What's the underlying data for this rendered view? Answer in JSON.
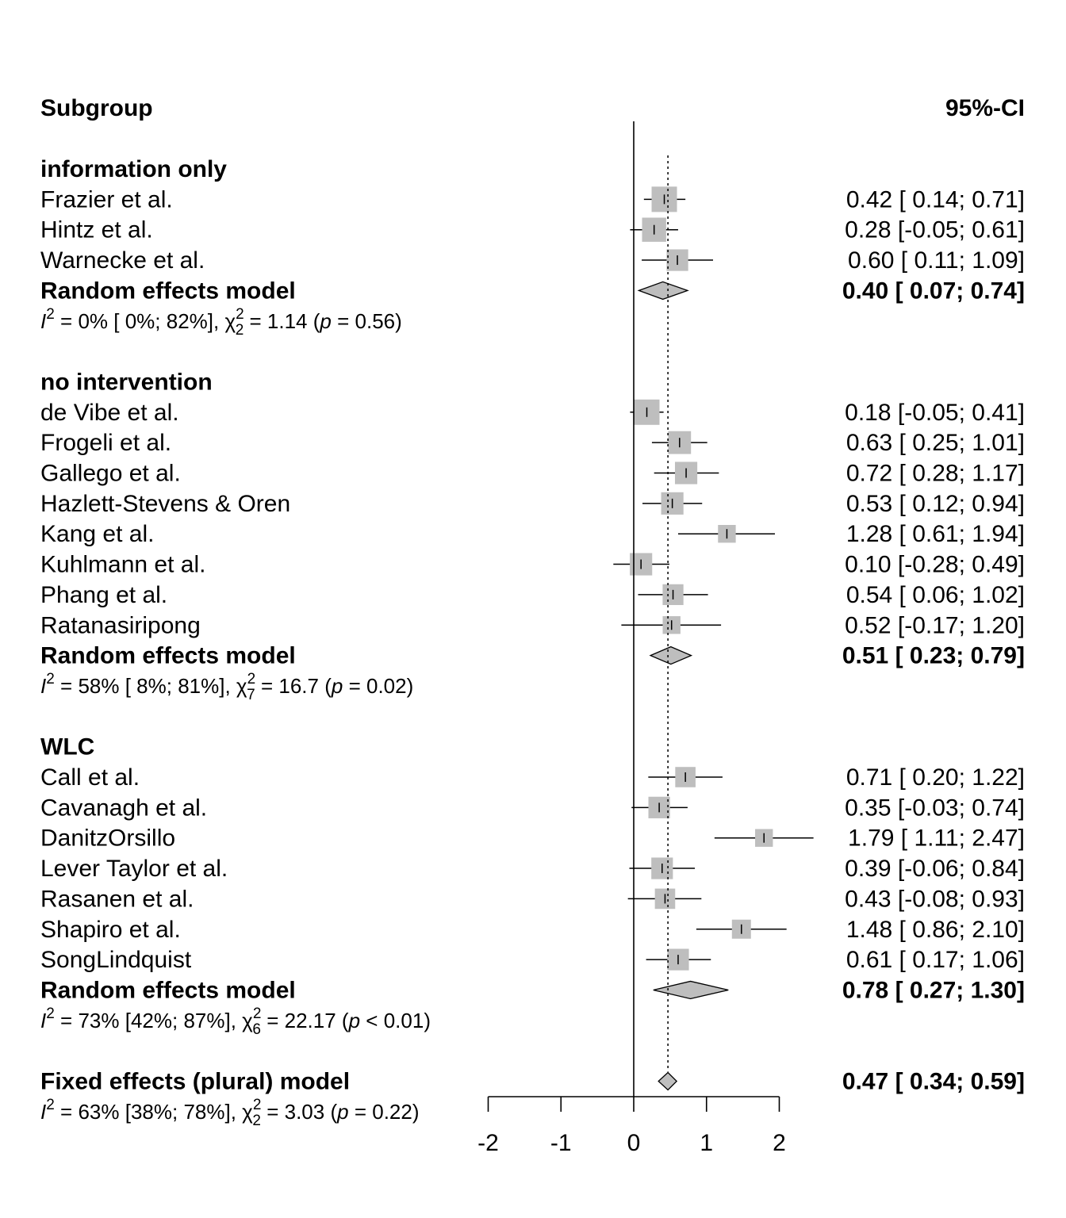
{
  "chart_data": {
    "type": "forest",
    "header": {
      "left": "Subgroup",
      "right": "95%-CI"
    },
    "groups": [
      {
        "title": "information only",
        "studies": [
          {
            "label": "Frazier et al.",
            "est": 0.42,
            "lo": 0.14,
            "hi": 0.71,
            "ci_text": "0.42  [ 0.14; 0.71]",
            "weight": 1.0
          },
          {
            "label": "Hintz et al.",
            "est": 0.28,
            "lo": -0.05,
            "hi": 0.61,
            "ci_text": "0.28  [-0.05; 0.61]",
            "weight": 0.95
          },
          {
            "label": "Warnecke et al.",
            "est": 0.6,
            "lo": 0.11,
            "hi": 1.09,
            "ci_text": "0.60  [ 0.11; 1.09]",
            "weight": 0.85
          }
        ],
        "model": {
          "label": "Random effects model",
          "est": 0.4,
          "lo": 0.07,
          "hi": 0.74,
          "ci_text": "0.40  [ 0.07; 0.74]"
        },
        "het": {
          "i2": "0%",
          "i2_ci": "[ 0%; 82%]",
          "df": "2",
          "chisq": "1.14",
          "p_rel": "=",
          "p": "0.56"
        }
      },
      {
        "title": "no intervention",
        "studies": [
          {
            "label": "de Vibe et al.",
            "est": 0.18,
            "lo": -0.05,
            "hi": 0.41,
            "ci_text": "0.18  [-0.05; 0.41]",
            "weight": 1.0
          },
          {
            "label": "Frogeli et al.",
            "est": 0.63,
            "lo": 0.25,
            "hi": 1.01,
            "ci_text": "0.63  [ 0.25; 1.01]",
            "weight": 0.9
          },
          {
            "label": "Gallego et al.",
            "est": 0.72,
            "lo": 0.28,
            "hi": 1.17,
            "ci_text": "0.72  [ 0.28; 1.17]",
            "weight": 0.88
          },
          {
            "label": "Hazlett-Stevens & Oren",
            "est": 0.53,
            "lo": 0.12,
            "hi": 0.94,
            "ci_text": "0.53  [ 0.12; 0.94]",
            "weight": 0.88
          },
          {
            "label": "Kang et al.",
            "est": 1.28,
            "lo": 0.61,
            "hi": 1.94,
            "ci_text": "1.28  [ 0.61; 1.94]",
            "weight": 0.7
          },
          {
            "label": "Kuhlmann et al.",
            "est": 0.1,
            "lo": -0.28,
            "hi": 0.49,
            "ci_text": "0.10  [-0.28; 0.49]",
            "weight": 0.88
          },
          {
            "label": "Phang et al.",
            "est": 0.54,
            "lo": 0.06,
            "hi": 1.02,
            "ci_text": "0.54  [ 0.06; 1.02]",
            "weight": 0.82
          },
          {
            "label": "Ratanasiripong",
            "est": 0.52,
            "lo": -0.17,
            "hi": 1.2,
            "ci_text": "0.52  [-0.17; 1.20]",
            "weight": 0.7
          }
        ],
        "model": {
          "label": "Random effects model",
          "est": 0.51,
          "lo": 0.23,
          "hi": 0.79,
          "ci_text": "0.51  [ 0.23; 0.79]"
        },
        "het": {
          "i2": "58%",
          "i2_ci": "[ 8%; 81%]",
          "df": "7",
          "chisq": "16.7",
          "p_rel": "=",
          "p": "0.02"
        }
      },
      {
        "title": "WLC",
        "studies": [
          {
            "label": "Call et al.",
            "est": 0.71,
            "lo": 0.2,
            "hi": 1.22,
            "ci_text": "0.71  [ 0.20; 1.22]",
            "weight": 0.8
          },
          {
            "label": "Cavanagh et al.",
            "est": 0.35,
            "lo": -0.03,
            "hi": 0.74,
            "ci_text": "0.35  [-0.03; 0.74]",
            "weight": 0.85
          },
          {
            "label": "DanitzOrsillo",
            "est": 1.79,
            "lo": 1.11,
            "hi": 2.47,
            "ci_text": "1.79  [ 1.11; 2.47]",
            "weight": 0.7
          },
          {
            "label": "Lever Taylor et al.",
            "est": 0.39,
            "lo": -0.06,
            "hi": 0.84,
            "ci_text": "0.39  [-0.06; 0.84]",
            "weight": 0.85
          },
          {
            "label": "Rasanen et al.",
            "est": 0.43,
            "lo": -0.08,
            "hi": 0.93,
            "ci_text": "0.43  [-0.08; 0.93]",
            "weight": 0.8
          },
          {
            "label": "Shapiro et al.",
            "est": 1.48,
            "lo": 0.86,
            "hi": 2.1,
            "ci_text": "1.48  [ 0.86; 2.10]",
            "weight": 0.75
          },
          {
            "label": "SongLindquist",
            "est": 0.61,
            "lo": 0.17,
            "hi": 1.06,
            "ci_text": "0.61  [ 0.17; 1.06]",
            "weight": 0.85
          }
        ],
        "model": {
          "label": "Random effects model",
          "est": 0.78,
          "lo": 0.27,
          "hi": 1.3,
          "ci_text": "0.78  [ 0.27; 1.30]"
        },
        "het": {
          "i2": "73%",
          "i2_ci": "[42%; 87%]",
          "df": "6",
          "chisq": "22.17",
          "p_rel": "<",
          "p": "0.01"
        }
      }
    ],
    "overall": {
      "label": "Fixed effects (plural) model",
      "est": 0.47,
      "lo": 0.34,
      "hi": 0.59,
      "ci_text": "0.47  [ 0.34; 0.59]",
      "het": {
        "i2": "63%",
        "i2_ci": "[38%; 78%]",
        "df": "2",
        "chisq": "3.03",
        "p_rel": "=",
        "p": "0.22"
      }
    },
    "x_axis": {
      "ticks": [
        -2,
        -1,
        0,
        1,
        2
      ],
      "tick_labels": [
        "-2",
        "-1",
        "0",
        "1",
        "2"
      ],
      "range": [
        -2,
        2
      ]
    },
    "reference_line": 0,
    "pooled_line": 0.47,
    "colors": {
      "square": "#bebebe",
      "diamond": "#bebebe",
      "line": "#000000"
    }
  }
}
